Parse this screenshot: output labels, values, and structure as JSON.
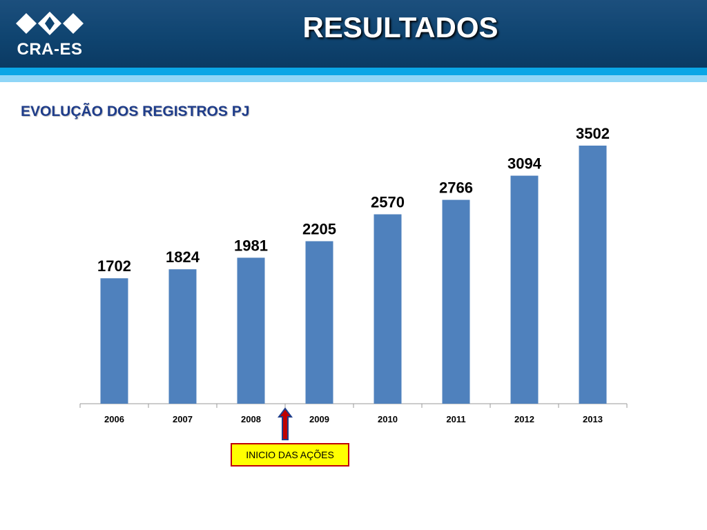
{
  "header": {
    "logo_text": "CRA-ES",
    "title": "RESULTADOS",
    "colors": {
      "banner": "#0f4470",
      "stripe_dark": "#0aa6e6",
      "stripe_light": "#8fd6f7"
    }
  },
  "subtitle": "EVOLUÇÃO DOS REGISTROS PJ",
  "chart_data": {
    "type": "bar",
    "categories": [
      "2006",
      "2007",
      "2008",
      "2009",
      "2010",
      "2011",
      "2012",
      "2013"
    ],
    "values": [
      1702,
      1824,
      1981,
      2205,
      2570,
      2766,
      3094,
      3502
    ],
    "title": "EVOLUÇÃO DOS REGISTROS PJ",
    "xlabel": "",
    "ylabel": "",
    "ylim": [
      0,
      3502
    ],
    "grid": false,
    "legend": "none",
    "bar_color": "#4f81bd",
    "data_labels": true,
    "annotation": {
      "text": "INICIO DAS AÇÕES",
      "points_between": [
        "2008",
        "2009"
      ],
      "arrow_color": "#c00000",
      "box_color": "#ffff00"
    }
  }
}
